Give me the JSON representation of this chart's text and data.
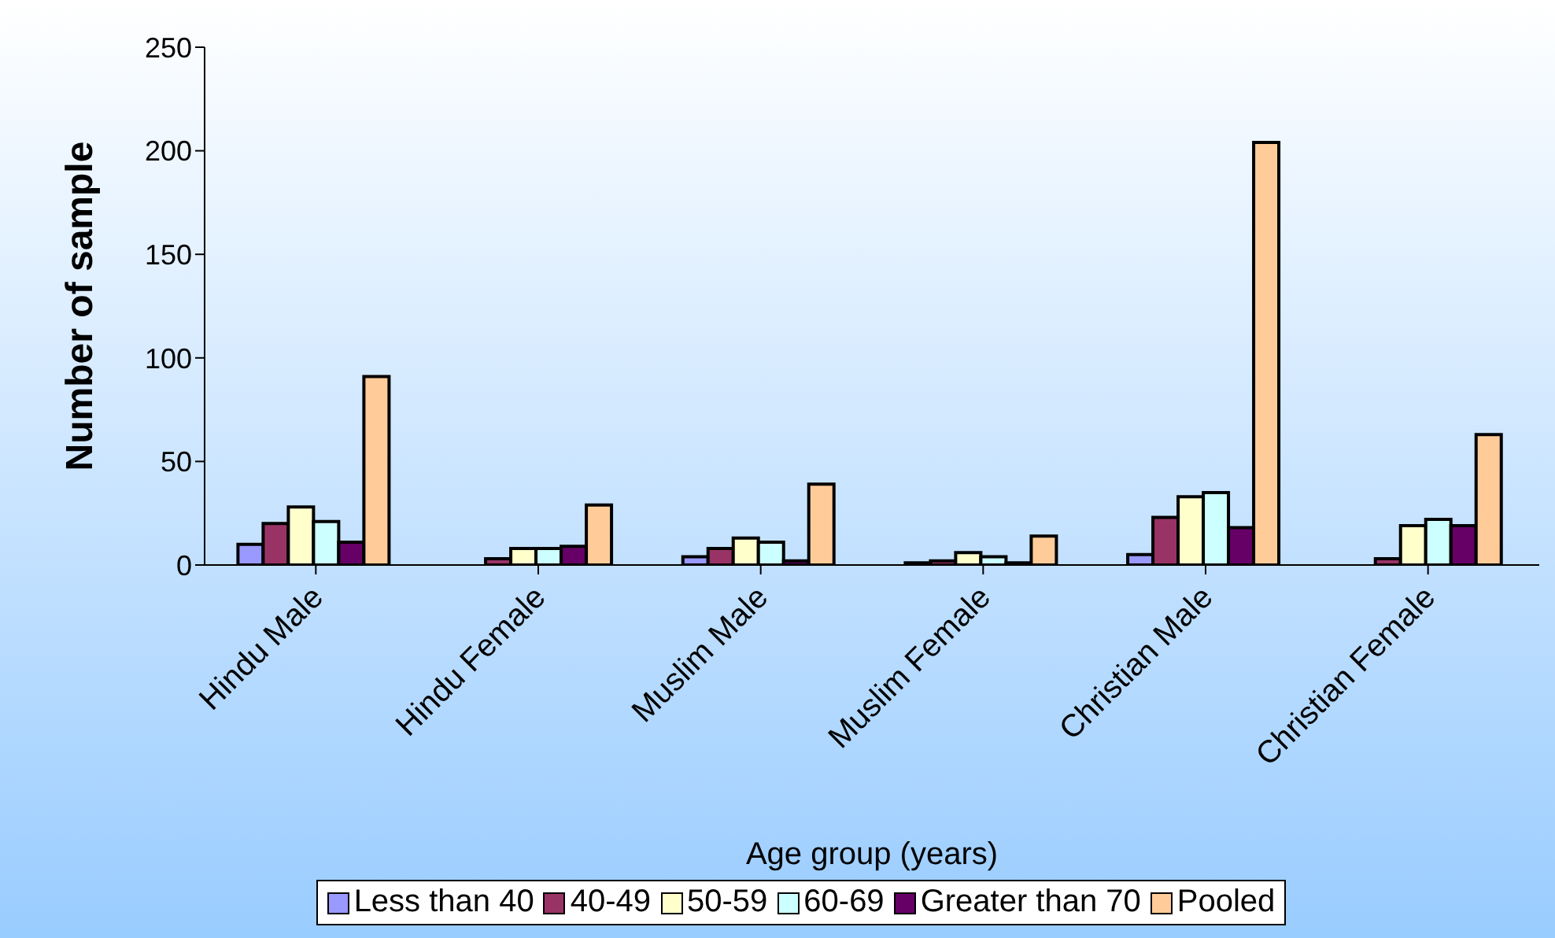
{
  "chart_data": {
    "type": "bar",
    "xlabel": "Age group (years)",
    "ylabel": "Number of sample",
    "categories": [
      "Hindu Male",
      "Hindu Female",
      "Muslim Male",
      "Muslim Female",
      "Christian Male",
      "Christian Female"
    ],
    "series": [
      {
        "name": "Less than 40",
        "color": "#9999ff",
        "values": [
          10,
          0,
          4,
          1,
          5,
          0
        ]
      },
      {
        "name": "40-49",
        "color": "#993366",
        "values": [
          20,
          3,
          8,
          2,
          23,
          3
        ]
      },
      {
        "name": "50-59",
        "color": "#ffffcc",
        "values": [
          28,
          8,
          13,
          6,
          33,
          19
        ]
      },
      {
        "name": "60-69",
        "color": "#ccffff",
        "values": [
          21,
          8,
          11,
          4,
          35,
          22
        ]
      },
      {
        "name": "Greater than 70",
        "color": "#660066",
        "values": [
          11,
          9,
          2,
          1,
          18,
          19
        ]
      },
      {
        "name": "Pooled",
        "color": "#ffcc99",
        "values": [
          91,
          29,
          39,
          14,
          204,
          63
        ]
      }
    ],
    "ylim": [
      0,
      250
    ],
    "yticks": [
      0,
      50,
      100,
      150,
      200,
      250
    ],
    "legend": "bottom"
  }
}
